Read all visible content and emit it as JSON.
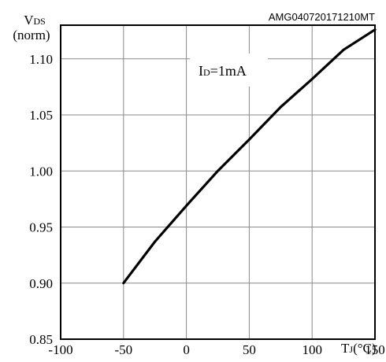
{
  "doc_code": "AMG040720171210MT",
  "chart_data": {
    "type": "line",
    "ylabel_main": "V",
    "ylabel_sub": "DS",
    "ylabel_unit": "(norm)",
    "xlabel_main": "T",
    "xlabel_sub": "J",
    "xlabel_unit": "(°C)",
    "annotation_main": "I",
    "annotation_sub": "D",
    "annotation_value": "=1mA",
    "xlim": [
      -100,
      150
    ],
    "ylim": [
      0.85,
      1.13
    ],
    "xticks": [
      -100,
      -50,
      0,
      50,
      100,
      150
    ],
    "xtick_labels": [
      "-100",
      "-50",
      "0",
      "50",
      "100",
      "150"
    ],
    "yticks": [
      0.85,
      0.9,
      0.95,
      1.0,
      1.05,
      1.1
    ],
    "ytick_labels": [
      "0.85",
      "0.90",
      "0.95",
      "1.00",
      "1.05",
      "1.10"
    ],
    "grid": true,
    "series": [
      {
        "x": [
          -50,
          -25,
          0,
          25,
          50,
          75,
          100,
          125,
          150
        ],
        "y": [
          0.9,
          0.937,
          0.969,
          1.0,
          1.028,
          1.057,
          1.082,
          1.108,
          1.126
        ]
      }
    ]
  }
}
